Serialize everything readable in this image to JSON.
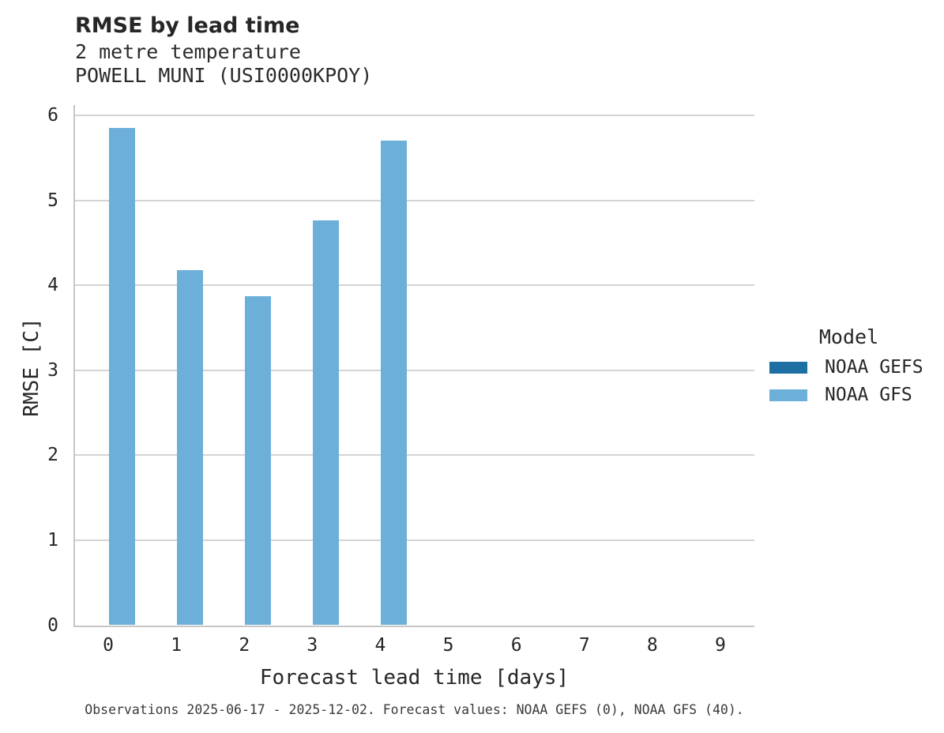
{
  "header": {
    "title": "RMSE by lead time",
    "subtitle_line1": "2 metre temperature",
    "subtitle_line2": "POWELL MUNI (USI0000KPOY)"
  },
  "legend": {
    "title": "Model",
    "items": [
      {
        "label": "NOAA GEFS",
        "color": "#1d6fa4"
      },
      {
        "label": "NOAA GFS",
        "color": "#6cafd9"
      }
    ]
  },
  "caption": "Observations 2025-06-17 - 2025-12-02. Forecast values: NOAA GEFS (0), NOAA GFS (40).",
  "chart_data": {
    "type": "bar",
    "title": "RMSE by lead time",
    "subtitle": "2 metre temperature",
    "station": "POWELL MUNI (USI0000KPOY)",
    "xlabel": "Forecast lead time [days]",
    "ylabel": "RMSE [C]",
    "categories": [
      "0",
      "1",
      "2",
      "3",
      "4",
      "5",
      "6",
      "7",
      "8",
      "9"
    ],
    "y_ticks": [
      0,
      1,
      2,
      3,
      4,
      5,
      6
    ],
    "ylim": [
      0,
      6
    ],
    "grid": true,
    "legend_title": "Model",
    "legend_position": "right",
    "series": [
      {
        "name": "NOAA GEFS",
        "color": "#1d6fa4",
        "values": [
          null,
          null,
          null,
          null,
          null,
          null,
          null,
          null,
          null,
          null
        ]
      },
      {
        "name": "NOAA GFS",
        "color": "#6cafd9",
        "values": [
          5.85,
          4.18,
          3.87,
          4.76,
          5.7,
          null,
          null,
          null,
          null,
          null
        ]
      }
    ],
    "colors": {
      "grid": "#d4d4d4",
      "spine": "#c6c6c6",
      "text": "#262626"
    }
  }
}
